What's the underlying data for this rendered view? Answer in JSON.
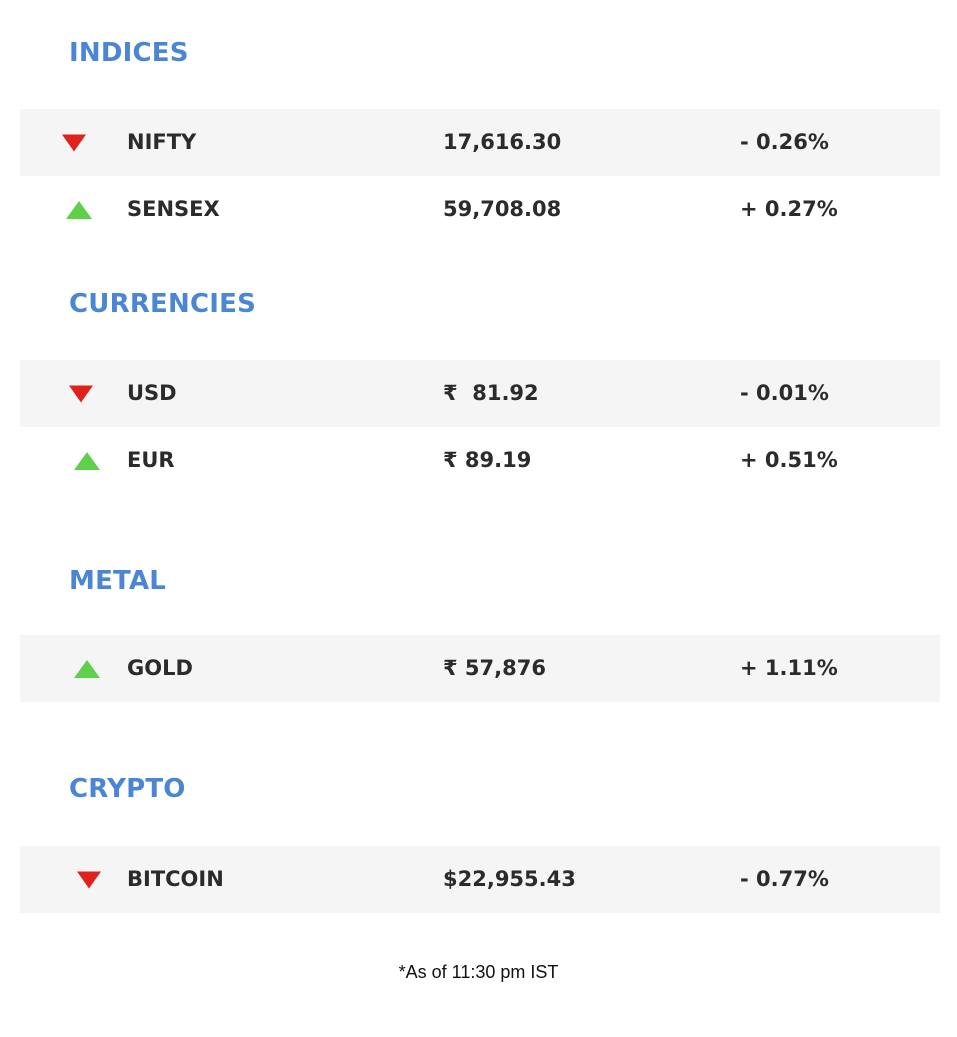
{
  "colors": {
    "heading": "#4a86d4",
    "down": "#e0221c",
    "up": "#5fd04a",
    "row_shade": "#f5f5f5"
  },
  "sections": {
    "indices": {
      "title": "INDICES",
      "rows": [
        {
          "direction": "down",
          "icon": "down-triangle-icon",
          "name": "NIFTY",
          "price": "17,616.30",
          "change": "- 0.26%"
        },
        {
          "direction": "up",
          "icon": "up-triangle-icon",
          "name": "SENSEX",
          "price": "59,708.08",
          "change": "+ 0.27%"
        }
      ]
    },
    "currencies": {
      "title": "CURRENCIES",
      "rows": [
        {
          "direction": "down",
          "icon": "down-triangle-icon",
          "name": "USD",
          "price": "₹  81.92",
          "change": "- 0.01%"
        },
        {
          "direction": "up",
          "icon": "up-triangle-icon",
          "name": "EUR",
          "price": "₹ 89.19",
          "change": "+ 0.51%"
        }
      ]
    },
    "metal": {
      "title": "METAL",
      "rows": [
        {
          "direction": "up",
          "icon": "up-triangle-icon",
          "name": "GOLD",
          "price": "₹ 57,876",
          "change": "+ 1.11%"
        }
      ]
    },
    "crypto": {
      "title": "CRYPTO",
      "rows": [
        {
          "direction": "down",
          "icon": "down-triangle-icon",
          "name": "BITCOIN",
          "price": "$22,955.43",
          "change": "- 0.77%"
        }
      ]
    }
  },
  "footnote": "*As of 11:30 pm IST"
}
